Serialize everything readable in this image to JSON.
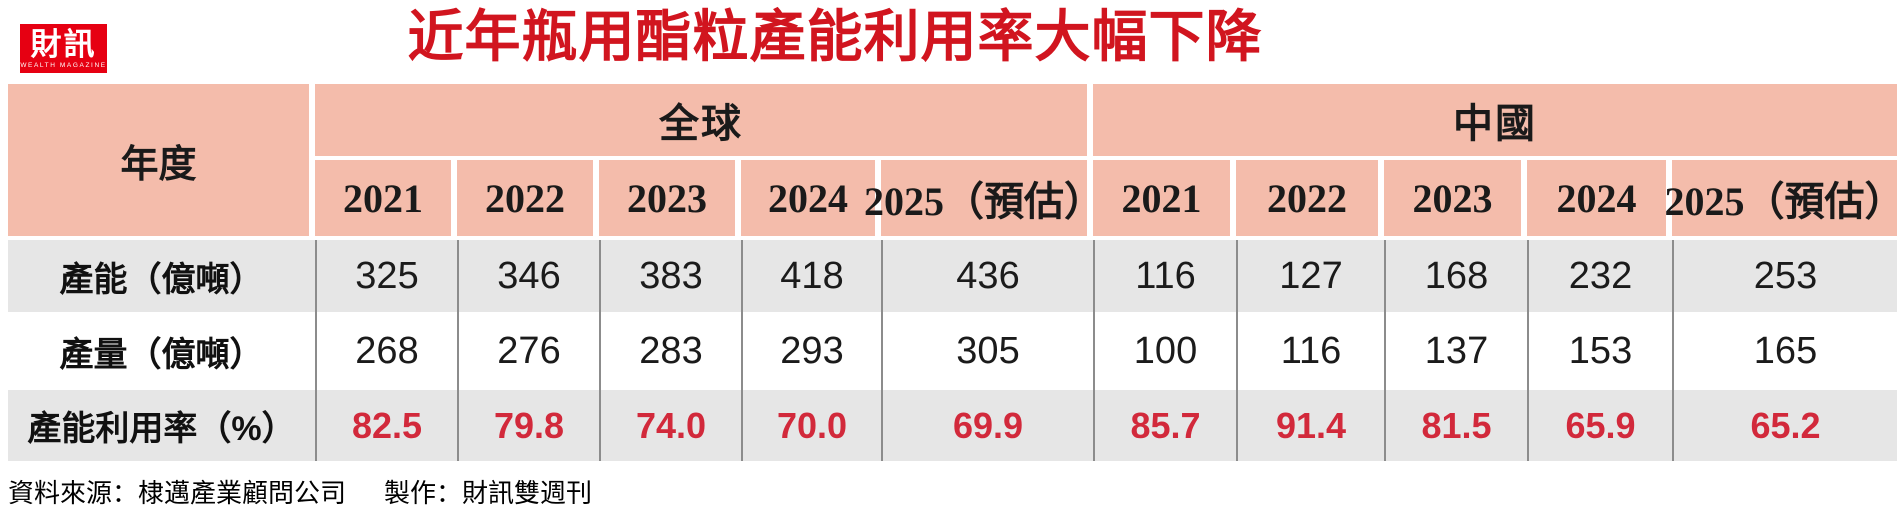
{
  "brand": {
    "logo_text": "財訊",
    "logo_subtext": "WEALTH MAGAZINE",
    "logo_bg": "#E60012"
  },
  "title": "近年瓶用酯粒產能利用率大幅下降",
  "colors": {
    "header_bg": "#F4BCAB",
    "row_alt_bg": "#E6E6E6",
    "title_red": "#D1151F",
    "value_red": "#D2293B",
    "rule_gray": "#8C8C8C"
  },
  "table": {
    "corner_label": "年度",
    "groups": [
      {
        "label": "全球",
        "years": [
          "2021",
          "2022",
          "2023",
          "2024",
          "2025（預估）"
        ]
      },
      {
        "label": "中國",
        "years": [
          "2021",
          "2022",
          "2023",
          "2024",
          "2025（預估）"
        ]
      }
    ],
    "rows": [
      {
        "label": "產能（億噸）",
        "global": [
          "325",
          "346",
          "383",
          "418",
          "436"
        ],
        "china": [
          "116",
          "127",
          "168",
          "232",
          "253"
        ]
      },
      {
        "label": "產量（億噸）",
        "global": [
          "268",
          "276",
          "283",
          "293",
          "305"
        ],
        "china": [
          "100",
          "116",
          "137",
          "153",
          "165"
        ]
      },
      {
        "label": "產能利用率（%）",
        "global": [
          "82.5",
          "79.8",
          "74.0",
          "70.0",
          "69.9"
        ],
        "china": [
          "85.7",
          "91.4",
          "81.5",
          "65.9",
          "65.2"
        ]
      }
    ]
  },
  "footer": {
    "source": "資料來源：棣邁產業顧問公司",
    "maker": "製作：財訊雙週刊"
  },
  "chart_data": {
    "type": "table",
    "title": "近年瓶用酯粒產能利用率大幅下降",
    "column_groups": [
      "全球",
      "中國"
    ],
    "years": [
      "2021",
      "2022",
      "2023",
      "2024",
      "2025（預估）"
    ],
    "rows": [
      {
        "label": "產能（億噸）",
        "global": [
          325,
          346,
          383,
          418,
          436
        ],
        "china": [
          116,
          127,
          168,
          232,
          253
        ]
      },
      {
        "label": "產量（億噸）",
        "global": [
          268,
          276,
          283,
          293,
          305
        ],
        "china": [
          100,
          116,
          137,
          153,
          165
        ]
      },
      {
        "label": "產能利用率（%）",
        "global": [
          82.5,
          79.8,
          74.0,
          70.0,
          69.9
        ],
        "china": [
          85.7,
          91.4,
          81.5,
          65.9,
          65.2
        ]
      }
    ],
    "source": "棣邁產業顧問公司",
    "produced_by": "財訊雙週刊"
  }
}
